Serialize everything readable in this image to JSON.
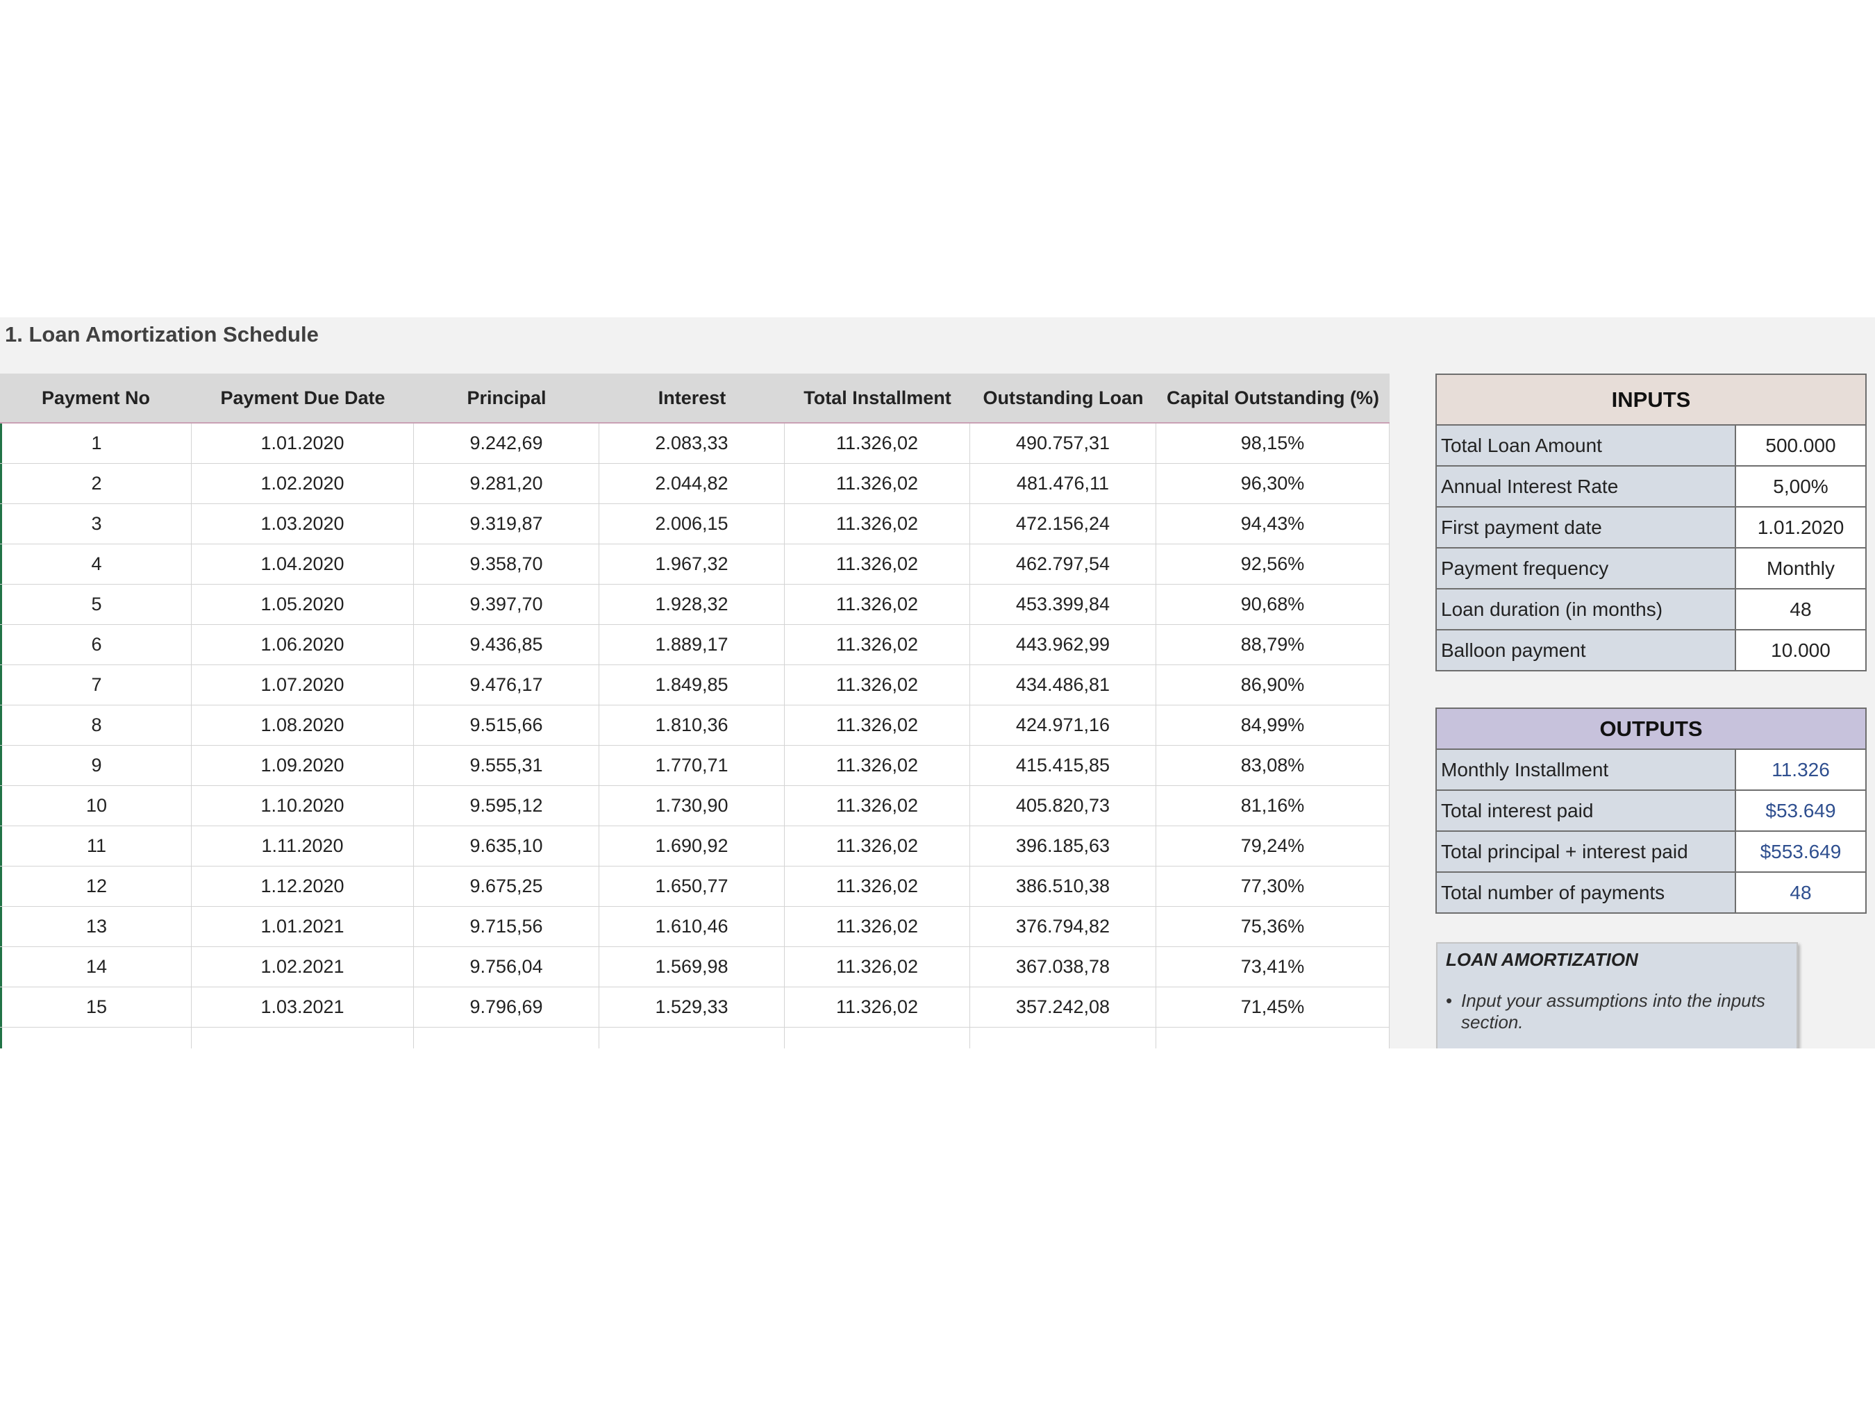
{
  "title": "1. Loan Amortization Schedule",
  "schedule": {
    "headers": [
      "Payment No",
      "Payment Due Date",
      "Principal",
      "Interest",
      "Total Installment",
      "Outstanding Loan",
      "Capital Outstanding (%)"
    ],
    "rows": [
      [
        "1",
        "1.01.2020",
        "9.242,69",
        "2.083,33",
        "11.326,02",
        "490.757,31",
        "98,15%"
      ],
      [
        "2",
        "1.02.2020",
        "9.281,20",
        "2.044,82",
        "11.326,02",
        "481.476,11",
        "96,30%"
      ],
      [
        "3",
        "1.03.2020",
        "9.319,87",
        "2.006,15",
        "11.326,02",
        "472.156,24",
        "94,43%"
      ],
      [
        "4",
        "1.04.2020",
        "9.358,70",
        "1.967,32",
        "11.326,02",
        "462.797,54",
        "92,56%"
      ],
      [
        "5",
        "1.05.2020",
        "9.397,70",
        "1.928,32",
        "11.326,02",
        "453.399,84",
        "90,68%"
      ],
      [
        "6",
        "1.06.2020",
        "9.436,85",
        "1.889,17",
        "11.326,02",
        "443.962,99",
        "88,79%"
      ],
      [
        "7",
        "1.07.2020",
        "9.476,17",
        "1.849,85",
        "11.326,02",
        "434.486,81",
        "86,90%"
      ],
      [
        "8",
        "1.08.2020",
        "9.515,66",
        "1.810,36",
        "11.326,02",
        "424.971,16",
        "84,99%"
      ],
      [
        "9",
        "1.09.2020",
        "9.555,31",
        "1.770,71",
        "11.326,02",
        "415.415,85",
        "83,08%"
      ],
      [
        "10",
        "1.10.2020",
        "9.595,12",
        "1.730,90",
        "11.326,02",
        "405.820,73",
        "81,16%"
      ],
      [
        "11",
        "1.11.2020",
        "9.635,10",
        "1.690,92",
        "11.326,02",
        "396.185,63",
        "79,24%"
      ],
      [
        "12",
        "1.12.2020",
        "9.675,25",
        "1.650,77",
        "11.326,02",
        "386.510,38",
        "77,30%"
      ],
      [
        "13",
        "1.01.2021",
        "9.715,56",
        "1.610,46",
        "11.326,02",
        "376.794,82",
        "75,36%"
      ],
      [
        "14",
        "1.02.2021",
        "9.756,04",
        "1.569,98",
        "11.326,02",
        "367.038,78",
        "73,41%"
      ],
      [
        "15",
        "1.03.2021",
        "9.796,69",
        "1.529,33",
        "11.326,02",
        "357.242,08",
        "71,45%"
      ]
    ]
  },
  "inputs": {
    "heading": "INPUTS",
    "rows": [
      {
        "label": "Total Loan Amount",
        "value": "500.000"
      },
      {
        "label": "Annual Interest Rate",
        "value": "5,00%"
      },
      {
        "label": "First payment date",
        "value": "1.01.2020"
      },
      {
        "label": "Payment frequency",
        "value": "Monthly"
      },
      {
        "label": "Loan duration (in months)",
        "value": "48"
      },
      {
        "label": "Balloon payment",
        "value": "10.000"
      }
    ]
  },
  "outputs": {
    "heading": "OUTPUTS",
    "rows": [
      {
        "label": "Monthly Installment",
        "value": "11.326"
      },
      {
        "label": "Total interest paid",
        "value": "$53.649"
      },
      {
        "label": "Total principal + interest paid",
        "value": "$553.649"
      },
      {
        "label": "Total number of payments",
        "value": "48"
      }
    ]
  },
  "note": {
    "title": "LOAN AMORTIZATION",
    "items": [
      "Input your assumptions into the inputs section."
    ]
  },
  "colors": {
    "inputs_header": "#e7ddd8",
    "outputs_header": "#c7c2dc",
    "label_cell": "#d6dce4",
    "output_value": "#2f4f8f",
    "selection_accent": "#217346"
  }
}
